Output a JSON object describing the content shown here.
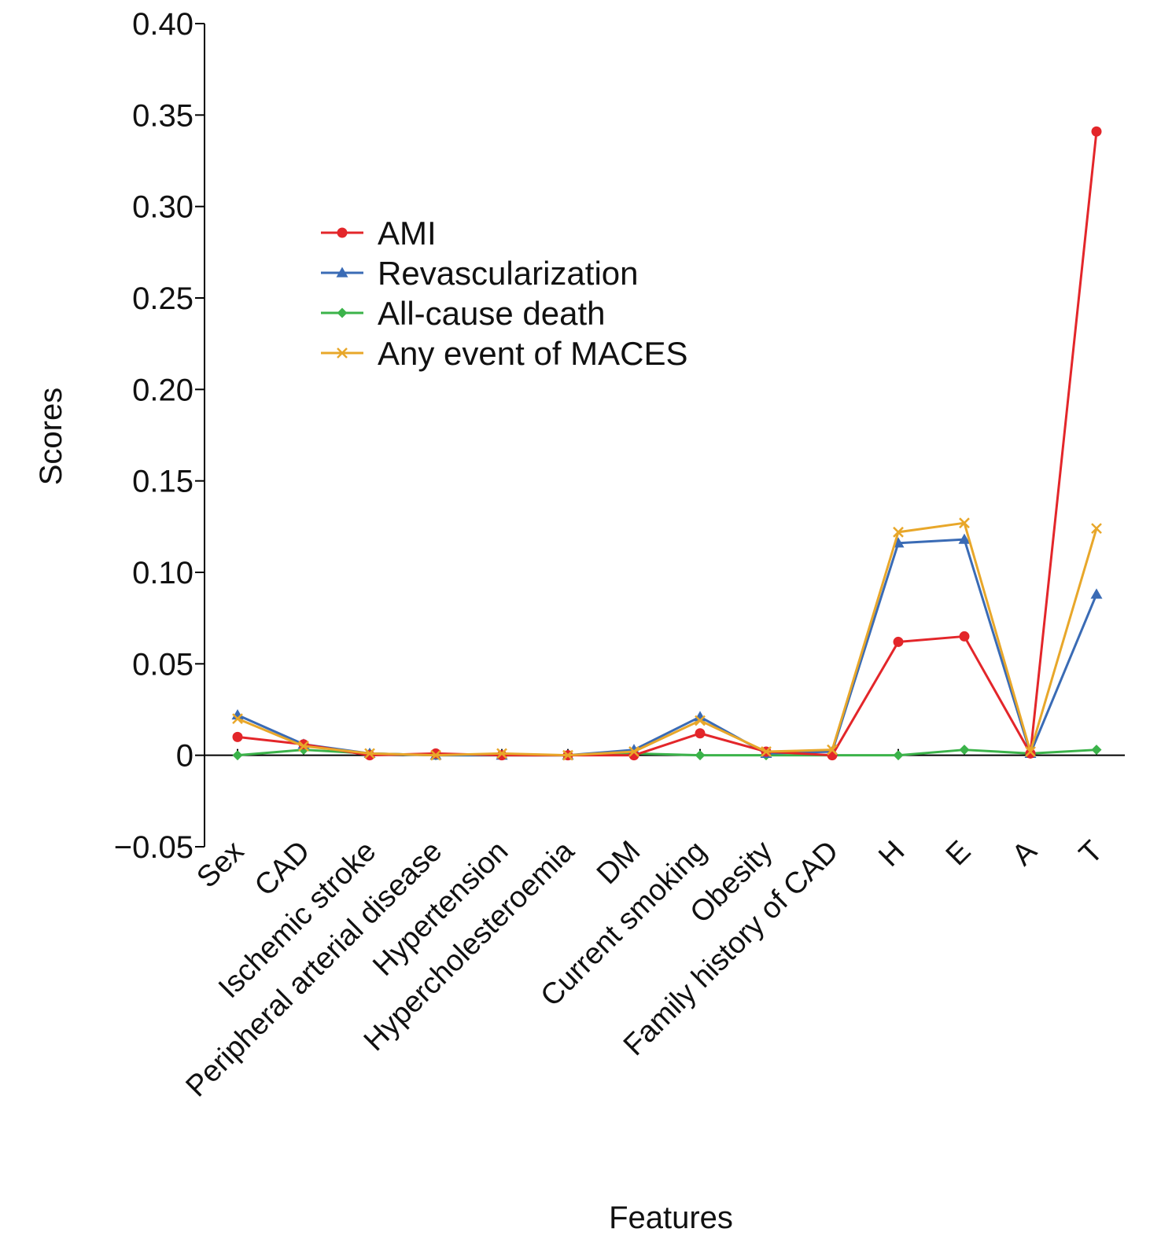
{
  "chart_data": {
    "type": "line",
    "xlabel": "Features",
    "ylabel": "Scores",
    "ylim": [
      -0.05,
      0.4
    ],
    "yticks": [
      -0.05,
      0,
      0.05,
      0.1,
      0.15,
      0.2,
      0.25,
      0.3,
      0.35,
      0.4
    ],
    "ytick_labels": [
      "−0.05",
      "0",
      "0.05",
      "0.10",
      "0.15",
      "0.20",
      "0.25",
      "0.30",
      "0.35",
      "0.40"
    ],
    "categories": [
      "Sex",
      "CAD",
      "Ischemic stroke",
      "Peripheral arterial disease",
      "Hypertension",
      "Hypercholesteroemia",
      "DM",
      "Current smoking",
      "Obesity",
      "Family history of CAD",
      "H",
      "E",
      "A",
      "T"
    ],
    "legend_position": "upper-left",
    "grid": false,
    "series": [
      {
        "name": "AMI",
        "color": "#e3262a",
        "marker": "circle",
        "values": [
          0.01,
          0.006,
          0.0,
          0.001,
          0.0,
          0.0,
          0.0,
          0.012,
          0.002,
          0.0,
          0.062,
          0.065,
          0.001,
          0.341
        ]
      },
      {
        "name": "Revascularization",
        "color": "#3a6bb5",
        "marker": "triangle",
        "values": [
          0.022,
          0.006,
          0.001,
          0.0,
          0.0,
          0.0,
          0.003,
          0.021,
          0.001,
          0.002,
          0.116,
          0.118,
          0.001,
          0.088
        ]
      },
      {
        "name": "All-cause death",
        "color": "#3bb34a",
        "marker": "diamond",
        "values": [
          0.0,
          0.003,
          0.001,
          0.0,
          0.0,
          0.0,
          0.001,
          0.0,
          0.0,
          0.0,
          0.0,
          0.003,
          0.001,
          0.003
        ]
      },
      {
        "name": "Any event of MACES",
        "color": "#e8a72a",
        "marker": "x",
        "values": [
          0.02,
          0.005,
          0.001,
          0.0,
          0.001,
          0.0,
          0.002,
          0.019,
          0.002,
          0.003,
          0.122,
          0.127,
          0.002,
          0.124
        ]
      }
    ]
  }
}
